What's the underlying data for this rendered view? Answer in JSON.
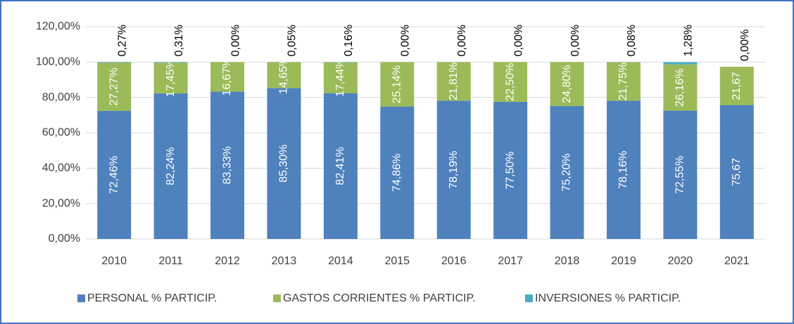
{
  "chart_data": {
    "type": "stacked_bar",
    "categories": [
      "2010",
      "2011",
      "2012",
      "2013",
      "2014",
      "2015",
      "2016",
      "2017",
      "2018",
      "2019",
      "2020",
      "2021"
    ],
    "series": [
      {
        "name": "PERSONAL % PARTICIP.",
        "color": "#4f81bd",
        "values": [
          72.46,
          82.24,
          83.33,
          85.3,
          82.41,
          74.86,
          78.19,
          77.5,
          75.2,
          78.16,
          72.55,
          75.67
        ],
        "value_labels": [
          "72,46%",
          "82,24%",
          "83,33%",
          "85,30%",
          "82,41%",
          "74,86%",
          "78,19%",
          "77,50%",
          "75,20%",
          "78,16%",
          "72,55%",
          "75,67"
        ]
      },
      {
        "name": "GASTOS CORRIENTES % PARTICIP.",
        "color": "#9bbb59",
        "values": [
          27.27,
          17.45,
          16.67,
          14.65,
          17.44,
          25.14,
          21.81,
          22.5,
          24.8,
          21.75,
          26.16,
          21.67
        ],
        "value_labels": [
          "27,27%",
          "17,45%",
          "16,67%",
          "14,65%",
          "17,44%",
          "25,14%",
          "21,81%",
          "22,50%",
          "24,80%",
          "21,75%",
          "26,16%",
          "21,67"
        ]
      },
      {
        "name": "INVERSIONES % PARTICIP.",
        "color": "#4bacc6",
        "values": [
          0.27,
          0.31,
          0.0,
          0.05,
          0.16,
          0.0,
          0.0,
          0.0,
          0.0,
          0.08,
          1.28,
          0.0
        ],
        "value_labels": [
          "0,27%",
          "0,31%",
          "0,00%",
          "0,05%",
          "0,16%",
          "0,00%",
          "0,00%",
          "0,00%",
          "0,00%",
          "0,08%",
          "1,28%",
          "0,00%"
        ]
      }
    ],
    "ylim": [
      0,
      120
    ],
    "yticks": [
      {
        "value": 0,
        "label": "0,00%"
      },
      {
        "value": 20,
        "label": "20,00%"
      },
      {
        "value": 40,
        "label": "40,00%"
      },
      {
        "value": 60,
        "label": "60,00%"
      },
      {
        "value": 80,
        "label": "80,00%"
      },
      {
        "value": 100,
        "label": "100,00%"
      },
      {
        "value": 120,
        "label": "120,00%"
      }
    ],
    "grid": true,
    "legend": "bottom"
  }
}
